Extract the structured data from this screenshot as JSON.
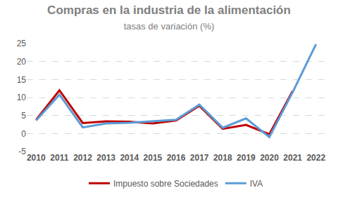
{
  "chart_data": {
    "type": "line",
    "title": "Compras en la industria de la alimentación",
    "subtitle": "tasas de variación (%)",
    "categories": [
      "2010",
      "2011",
      "2012",
      "2013",
      "2014",
      "2015",
      "2016",
      "2017",
      "2018",
      "2019",
      "2020",
      "2021",
      "2022"
    ],
    "series": [
      {
        "name": "Impuesto sobre Sociedades",
        "color": "#c00000",
        "values": [
          3.8,
          12.0,
          2.9,
          3.4,
          3.3,
          2.8,
          3.6,
          7.7,
          1.3,
          2.4,
          -0.2,
          11.8,
          null
        ]
      },
      {
        "name": "IVA",
        "color": "#5b9bd5",
        "values": [
          3.6,
          10.8,
          1.7,
          2.8,
          3.0,
          3.4,
          3.8,
          8.0,
          1.6,
          4.2,
          -1.0,
          11.5,
          24.8
        ]
      }
    ],
    "ylim": [
      -5,
      25
    ],
    "yticks": [
      -5,
      0,
      5,
      10,
      15,
      20,
      25
    ],
    "grid": true,
    "legend": "bottom"
  }
}
